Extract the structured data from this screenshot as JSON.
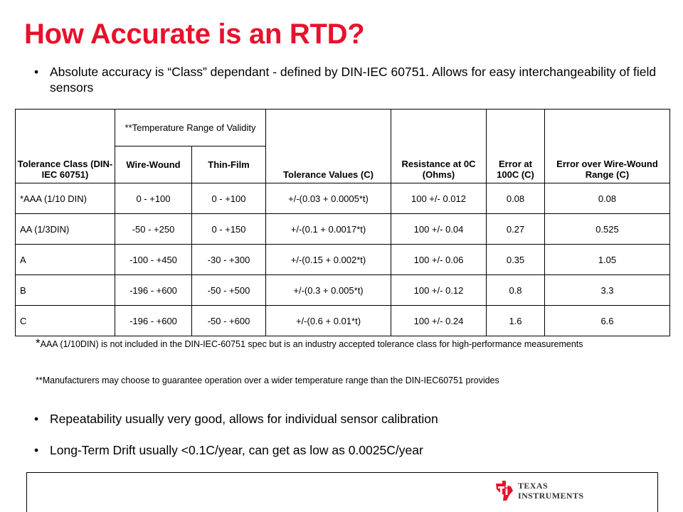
{
  "slide": {
    "title": "How Accurate is an RTD?",
    "bullets": [
      "Absolute accuracy is “Class” dependant - defined by DIN-IEC 60751.  Allows for easy interchangeability of field sensors",
      "Repeatability usually very good, allows for individual sensor calibration",
      "Long-Term Drift usually <0.1C/year, can get as low as 0.0025C/year"
    ],
    "bullet_glyph": "•"
  },
  "table": {
    "headers": {
      "tolerance_class": "Tolerance Class (DIN-IEC 60751)",
      "temp_range": "**Temperature Range of Validity",
      "wire_wound": "Wire-Wound",
      "thin_film": "Thin-Film",
      "tolerance_values": "Tolerance Values (C)",
      "resistance": "Resistance at 0C (Ohms)",
      "error_100c": "Error at 100C (C)",
      "error_wire_wound": "Error over Wire-Wound Range (C)"
    },
    "rows": [
      {
        "cls": "*AAA (1/10 DIN)",
        "wire": "0 - +100",
        "thin": "0 - +100",
        "tol": "+/-(0.03 + 0.0005*t)",
        "res": "100 +/- 0.012",
        "err100": "0.08",
        "errww": "0.08"
      },
      {
        "cls": "AA (1/3DIN)",
        "wire": "-50 - +250",
        "thin": "0 - +150",
        "tol": "+/-(0.1 + 0.0017*t)",
        "res": "100 +/- 0.04",
        "err100": "0.27",
        "errww": "0.525"
      },
      {
        "cls": "A",
        "wire": "-100 - +450",
        "thin": "-30 - +300",
        "tol": "+/-(0.15 + 0.002*t)",
        "res": "100 +/- 0.06",
        "err100": "0.35",
        "errww": "1.05"
      },
      {
        "cls": "B",
        "wire": "-196 - +600",
        "thin": "-50 - +500",
        "tol": "+/-(0.3 + 0.005*t)",
        "res": "100 +/- 0.12",
        "err100": "0.8",
        "errww": "3.3"
      },
      {
        "cls": "C",
        "wire": "-196 - +600",
        "thin": "-50 - +600",
        "tol": "+/-(0.6 + 0.01*t)",
        "res": "100 +/- 0.24",
        "err100": "1.6",
        "errww": "6.6"
      }
    ]
  },
  "notes": {
    "n1_star": "*",
    "n1": "AAA (1/10DIN) is not included in the DIN-IEC-60751 spec but is an industry accepted tolerance class for high-performance measurements",
    "n2": "**Manufacturers may choose to guarantee operation over a wider temperature range than the DIN-IEC60751 provides"
  },
  "footer": {
    "logo_line1": "TEXAS",
    "logo_line2": "INSTRUMENTS",
    "logo_icon": "texas-instruments-logo-icon",
    "brand_color": "#e8112d"
  }
}
